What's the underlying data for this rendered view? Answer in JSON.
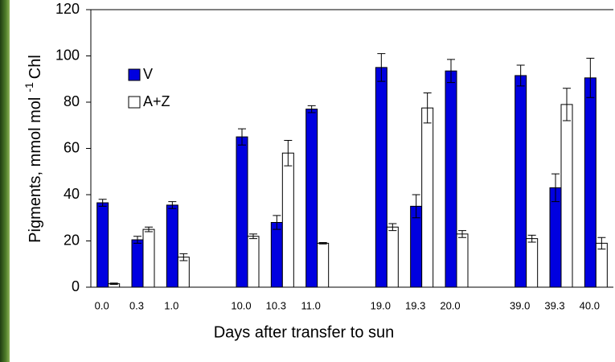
{
  "chart_data": {
    "type": "bar",
    "categories": [
      "0.0",
      "0.3",
      "1.0",
      null,
      "10.0",
      "10.3",
      "11.0",
      null,
      "19.0",
      "19.3",
      "20.0",
      null,
      "39.0",
      "39.3",
      "40.0"
    ],
    "series": [
      {
        "name": "V",
        "color": "#0000e0",
        "values": [
          36.5,
          20.5,
          35.5,
          null,
          65,
          28,
          77,
          null,
          95,
          35,
          93.5,
          null,
          91.5,
          43,
          90.5
        ],
        "errors": [
          1.5,
          1.5,
          1.5,
          null,
          3.5,
          3,
          1.5,
          null,
          6,
          5,
          5,
          null,
          4.5,
          6,
          8.5
        ]
      },
      {
        "name": "A+Z",
        "color": "#ffffff",
        "values": [
          1.5,
          25,
          13,
          null,
          22,
          58,
          19,
          null,
          26,
          77.5,
          23,
          null,
          21,
          79,
          19
        ],
        "errors": [
          0.3,
          1,
          1.5,
          null,
          1,
          5.5,
          0.3,
          null,
          1.5,
          6.5,
          1.5,
          null,
          1.5,
          7,
          2.5
        ]
      }
    ],
    "xlabel": "Days after transfer to sun",
    "ylabel": "Pigments, mmol mol",
    "ylabel_sup": "-1",
    "ylabel_end": "Chl",
    "ylim": [
      0,
      120
    ],
    "yticks": [
      0,
      20,
      40,
      60,
      80,
      100,
      120
    ],
    "legend": "upper left"
  }
}
